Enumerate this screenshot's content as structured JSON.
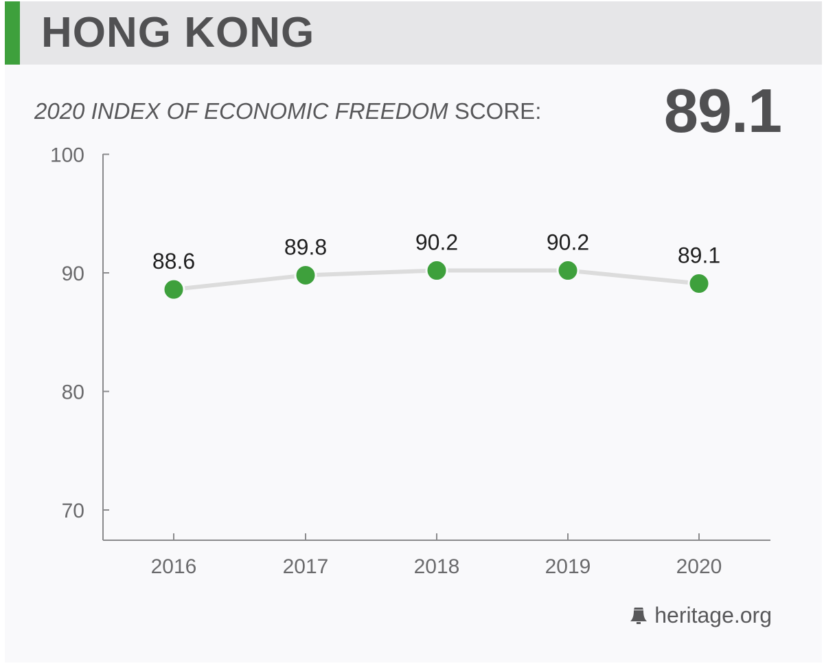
{
  "header": {
    "title": "HONG KONG"
  },
  "subtitle": {
    "italic": "2020 INDEX OF ECONOMIC FREEDOM",
    "normal": "SCORE:"
  },
  "score": "89.1",
  "footer": {
    "brand": "heritage.org",
    "icon": "liberty-bell-icon"
  },
  "colors": {
    "accent": "#3ea03c",
    "line": "#dcdcdc",
    "text": "#58585a"
  },
  "chart_data": {
    "type": "line",
    "categories": [
      "2016",
      "2017",
      "2018",
      "2019",
      "2020"
    ],
    "values": [
      88.6,
      89.8,
      90.2,
      90.2,
      89.1
    ],
    "data_labels": [
      "88.6",
      "89.8",
      "90.2",
      "90.2",
      "89.1"
    ],
    "yticks": [
      "100",
      "90",
      "80",
      "70"
    ],
    "ylim": [
      67.5,
      100
    ],
    "grid": false,
    "legend": false
  }
}
